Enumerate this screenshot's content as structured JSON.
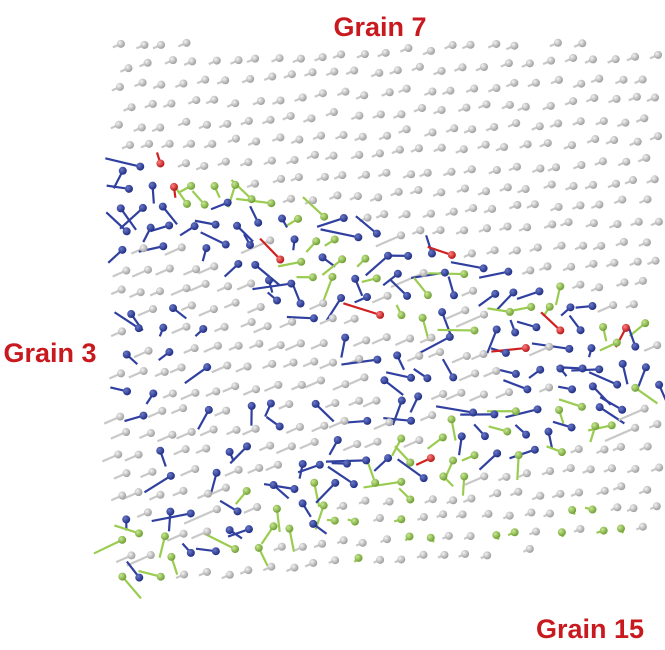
{
  "labels": {
    "top": "Grain 7",
    "left": "Grain 3",
    "bottom_right": "Grain 15"
  }
}
